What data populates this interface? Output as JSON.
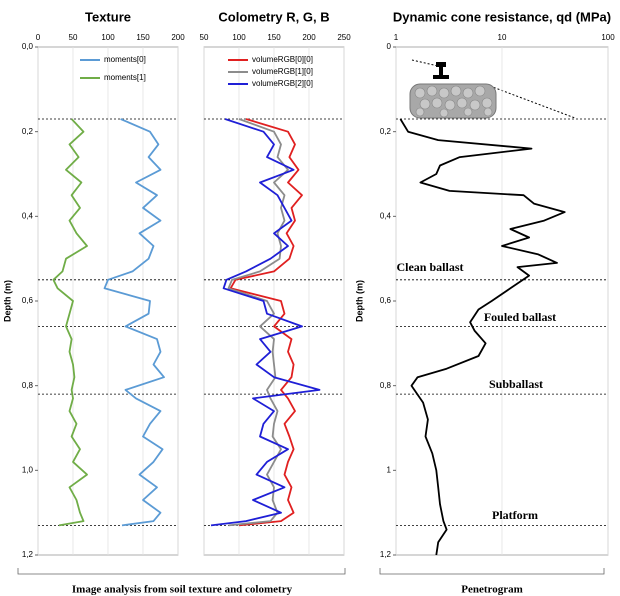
{
  "chart_data": [
    {
      "type": "line",
      "title": "Texture",
      "y_label": "Depth (m)",
      "xlim": [
        0,
        200
      ],
      "xticks": [
        0,
        50,
        100,
        150,
        200
      ],
      "ylim": [
        0,
        1.2
      ],
      "yticks": [
        {
          "value": 0,
          "label": "0,0"
        },
        {
          "value": 0.2,
          "label": "0,2"
        },
        {
          "value": 0.4,
          "label": "0,4"
        },
        {
          "value": 0.6,
          "label": "0,6"
        },
        {
          "value": 0.8,
          "label": "0,8"
        },
        {
          "value": 1.0,
          "label": "1,0"
        },
        {
          "value": 1.2,
          "label": "1,2"
        }
      ],
      "grid": true,
      "legend": "top-center",
      "hlines": [
        0.17,
        0.55,
        0.66,
        0.82,
        1.13
      ],
      "y": [
        0.17,
        0.2,
        0.23,
        0.26,
        0.29,
        0.32,
        0.35,
        0.38,
        0.41,
        0.44,
        0.47,
        0.5,
        0.53,
        0.55,
        0.57,
        0.6,
        0.63,
        0.66,
        0.69,
        0.72,
        0.75,
        0.78,
        0.81,
        0.83,
        0.86,
        0.89,
        0.92,
        0.95,
        0.98,
        1.01,
        1.04,
        1.07,
        1.1,
        1.12,
        1.13
      ],
      "series": [
        {
          "name": "moments[0]",
          "color": "#5b9bd5",
          "values": [
            118,
            160,
            172,
            158,
            175,
            140,
            170,
            150,
            175,
            145,
            165,
            158,
            135,
            100,
            95,
            160,
            158,
            125,
            170,
            175,
            165,
            180,
            125,
            140,
            175,
            160,
            150,
            178,
            165,
            145,
            170,
            150,
            175,
            165,
            120
          ]
        },
        {
          "name": "moments[1]",
          "color": "#70ad47",
          "values": [
            48,
            65,
            45,
            58,
            40,
            62,
            48,
            60,
            45,
            55,
            70,
            40,
            35,
            22,
            28,
            50,
            45,
            40,
            48,
            45,
            50,
            52,
            48,
            50,
            45,
            55,
            48,
            60,
            50,
            70,
            45,
            55,
            60,
            65,
            30
          ]
        }
      ]
    },
    {
      "type": "line",
      "title": "Colometry R, G, B",
      "xlim": [
        50,
        250
      ],
      "xticks": [
        50,
        100,
        150,
        200,
        250
      ],
      "ylim": [
        0,
        1.2
      ],
      "grid": true,
      "legend": "top-right",
      "hlines": [
        0.17,
        0.55,
        0.66,
        0.82,
        1.13
      ],
      "y": [
        0.17,
        0.2,
        0.23,
        0.26,
        0.29,
        0.32,
        0.35,
        0.38,
        0.41,
        0.44,
        0.47,
        0.5,
        0.53,
        0.55,
        0.57,
        0.6,
        0.63,
        0.66,
        0.69,
        0.72,
        0.75,
        0.78,
        0.81,
        0.83,
        0.86,
        0.89,
        0.92,
        0.95,
        0.98,
        1.01,
        1.04,
        1.07,
        1.1,
        1.12,
        1.13
      ],
      "series": [
        {
          "name": "volumeRGB[0][0]",
          "color": "#e02020",
          "values": [
            110,
            170,
            180,
            172,
            185,
            170,
            190,
            175,
            180,
            168,
            178,
            172,
            150,
            95,
            88,
            160,
            165,
            150,
            175,
            170,
            178,
            175,
            160,
            170,
            180,
            165,
            172,
            178,
            170,
            165,
            175,
            170,
            178,
            160,
            100
          ]
        },
        {
          "name": "volumeRGB[1][0]",
          "color": "#8c8c8c",
          "values": [
            100,
            150,
            160,
            155,
            170,
            150,
            165,
            160,
            165,
            155,
            160,
            158,
            130,
            90,
            85,
            140,
            150,
            130,
            150,
            148,
            150,
            152,
            140,
            145,
            155,
            150,
            148,
            160,
            150,
            140,
            150,
            148,
            155,
            145,
            85
          ]
        },
        {
          "name": "volumeRGB[2][0]",
          "color": "#1f1fd6",
          "values": [
            80,
            135,
            150,
            140,
            178,
            130,
            155,
            165,
            175,
            150,
            170,
            145,
            110,
            82,
            78,
            135,
            140,
            190,
            130,
            145,
            125,
            150,
            215,
            120,
            150,
            135,
            130,
            170,
            140,
            125,
            165,
            120,
            160,
            110,
            60
          ]
        }
      ]
    },
    {
      "type": "line",
      "title": "Dynamic cone resistance, qd (MPa)",
      "y_label": "Depth (m)",
      "xscale": "log",
      "xlim": [
        1,
        100
      ],
      "xticks": [
        1,
        10,
        100
      ],
      "ylim": [
        0,
        1.2
      ],
      "yticks": [
        0,
        {
          "value": 0.2,
          "label": "0,2"
        },
        {
          "value": 0.4,
          "label": "0,4"
        },
        {
          "value": 0.6,
          "label": "0,6"
        },
        {
          "value": 0.8,
          "label": "0,8"
        },
        1,
        {
          "value": 1.2,
          "label": "1,2"
        }
      ],
      "grid": true,
      "hlines": [
        0.17,
        0.55,
        0.66,
        0.82,
        1.13
      ],
      "annotations": [
        "Clean ballast",
        "Fouled ballast",
        "Subballast",
        "Platform"
      ],
      "y": [
        0.17,
        0.2,
        0.22,
        0.24,
        0.26,
        0.28,
        0.3,
        0.32,
        0.34,
        0.35,
        0.37,
        0.39,
        0.41,
        0.43,
        0.45,
        0.47,
        0.49,
        0.51,
        0.52,
        0.54,
        0.57,
        0.6,
        0.62,
        0.65,
        0.67,
        0.7,
        0.73,
        0.76,
        0.78,
        0.8,
        0.84,
        0.88,
        0.92,
        0.96,
        1.0,
        1.04,
        1.08,
        1.12,
        1.14,
        1.17,
        1.2
      ],
      "series": [
        {
          "color": "#000000",
          "values": [
            1.1,
            1.3,
            2.5,
            19,
            4,
            2.6,
            2.4,
            1.7,
            3.2,
            16,
            20,
            39,
            25,
            12,
            18,
            10,
            22,
            33,
            14,
            18,
            12,
            8,
            6,
            5,
            5.5,
            7,
            6,
            3,
            1.6,
            1.4,
            1.8,
            2,
            1.9,
            2.2,
            2.4,
            2.5,
            2.6,
            2.8,
            3,
            2.5,
            2.4
          ]
        }
      ]
    }
  ],
  "captions": [
    "Image analysis from soil texture and colometry",
    "Penetrogram"
  ]
}
